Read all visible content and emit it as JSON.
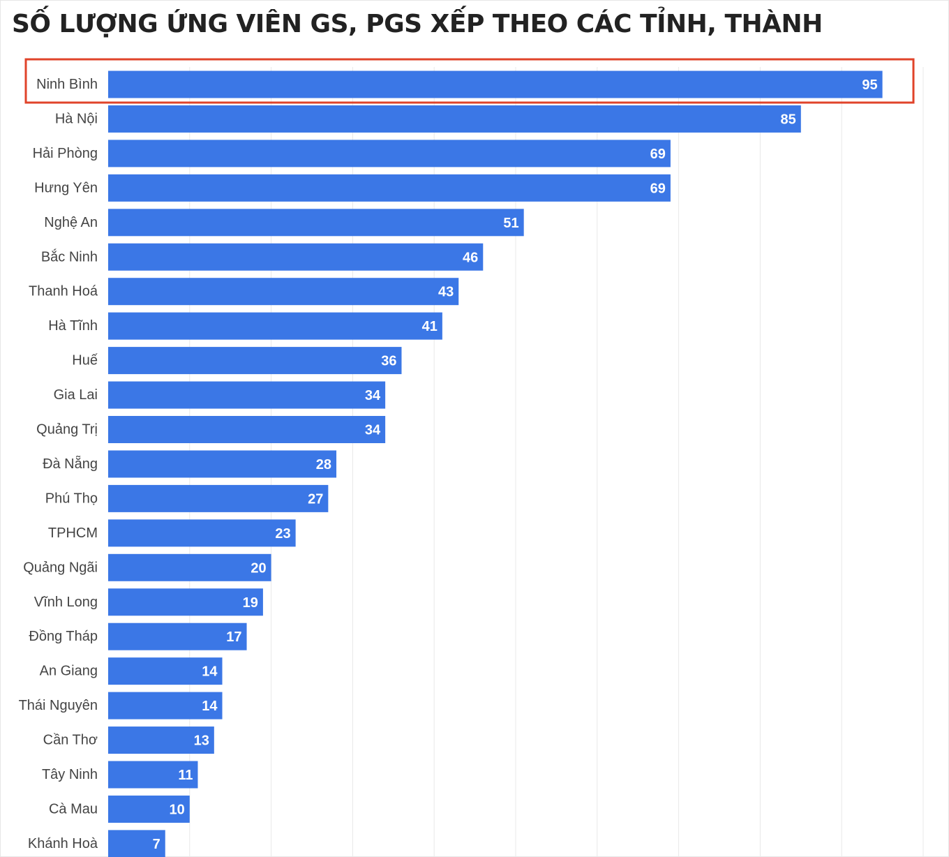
{
  "chart_data": {
    "type": "bar",
    "orientation": "horizontal",
    "title": "SỐ LƯỢNG ỨNG VIÊN GS, PGS XẾP THEO CÁC TỈNH, THÀNH",
    "categories": [
      "Ninh Bình",
      "Hà Nội",
      "Hải Phòng",
      "Hưng Yên",
      "Nghệ An",
      "Bắc Ninh",
      "Thanh Hoá",
      "Hà Tĩnh",
      "Huế",
      "Gia Lai",
      "Quảng Trị",
      "Đà Nẵng",
      "Phú Thọ",
      "TPHCM",
      "Quảng Ngãi",
      "Vĩnh Long",
      "Đồng Tháp",
      "An Giang",
      "Thái Nguyên",
      "Cần Thơ",
      "Tây Ninh",
      "Cà Mau",
      "Khánh Hoà"
    ],
    "values": [
      95,
      85,
      69,
      69,
      51,
      46,
      43,
      41,
      36,
      34,
      34,
      28,
      27,
      23,
      20,
      19,
      17,
      14,
      14,
      13,
      11,
      10,
      7
    ],
    "xlim": [
      0,
      100
    ],
    "grid": true,
    "highlighted_category": "Ninh Bình",
    "colors": {
      "bar": "#3b77e6",
      "value_label": "#ffffff",
      "grid": "#e8e8e8",
      "highlight_box": "#e0432a",
      "category_label": "#444444"
    }
  }
}
